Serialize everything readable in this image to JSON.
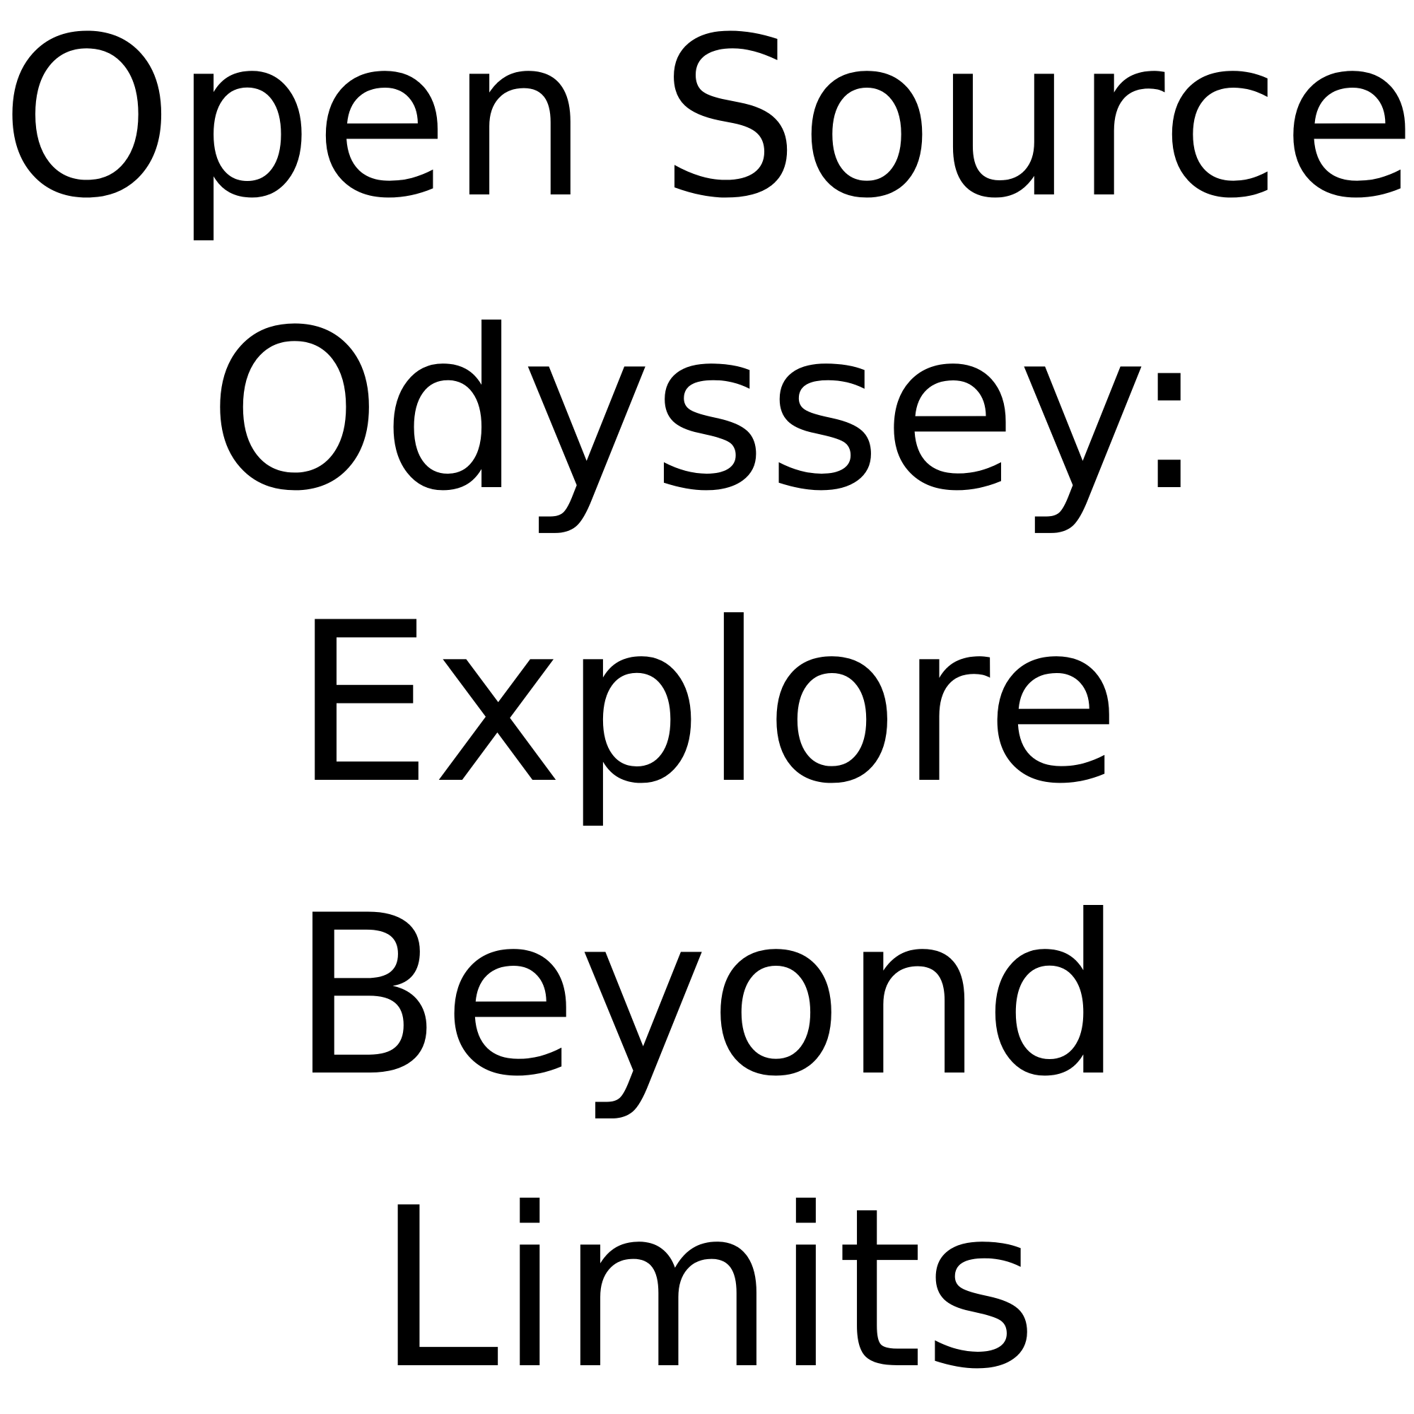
{
  "title": {
    "lines": [
      "Open Source",
      "Odyssey:",
      "Explore",
      "Beyond",
      "Limits"
    ]
  },
  "colors": {
    "background": "#ffffff",
    "text": "#000000"
  }
}
